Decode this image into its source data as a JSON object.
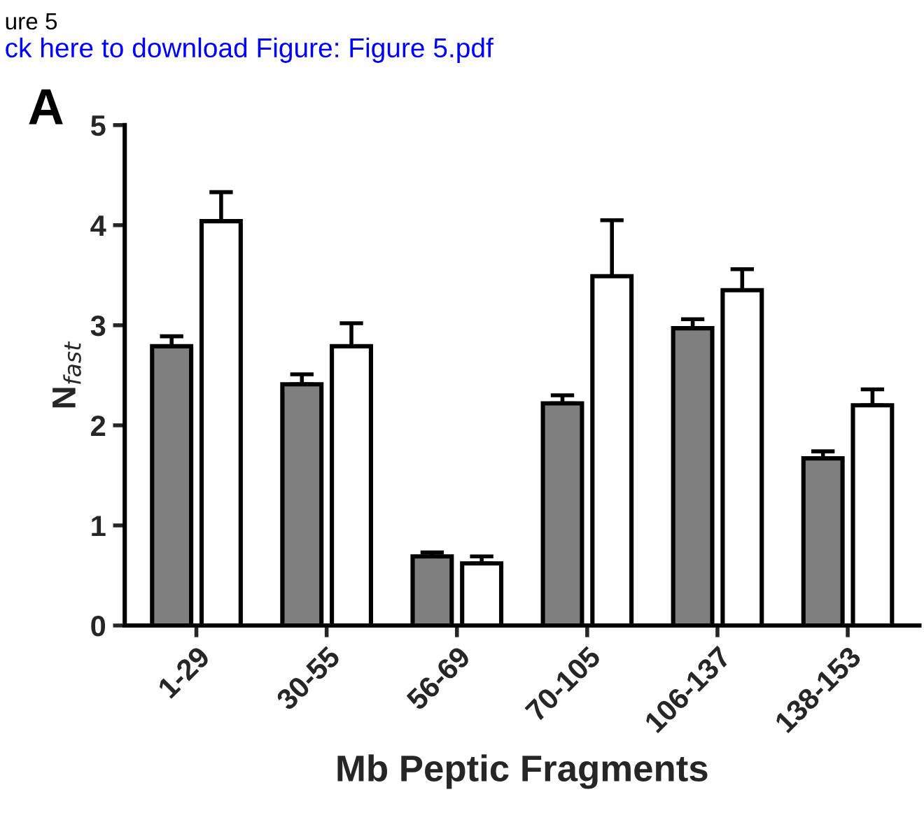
{
  "chart_data": {
    "type": "bar",
    "xlabel": "Mb Peptic Fragments",
    "ylabel": "N$_{fast}$",
    "categories": [
      "1-29",
      "30-55",
      "56-69",
      "70-105",
      "106-137",
      "138-153"
    ],
    "series": [
      {
        "color": "#7f7f7f",
        "values": [
          2.79,
          2.41,
          0.69,
          2.22,
          2.97,
          1.67
        ],
        "errors": [
          [
            2.79,
            2.89
          ],
          [
            2.41,
            2.51
          ],
          [
            0.69,
            0.73
          ],
          [
            2.22,
            2.3
          ],
          [
            2.97,
            3.06
          ],
          [
            1.67,
            1.74
          ]
        ]
      },
      {
        "color": "#ffffff",
        "values": [
          4.04,
          2.79,
          0.62,
          3.49,
          3.35,
          2.2
        ],
        "errors": [
          [
            4.04,
            4.33
          ],
          [
            2.79,
            3.02
          ],
          [
            0.62,
            0.69
          ],
          [
            3.49,
            4.05
          ],
          [
            3.35,
            3.56
          ],
          [
            2.2,
            2.36
          ]
        ]
      }
    ],
    "ylim": [
      0,
      5
    ],
    "yticks": [
      0,
      1,
      2,
      3,
      4,
      5
    ],
    "grid": false,
    "legend": false,
    "annotations": [
      "ure 5",
      "ck here to download Figure: Figure 5.pdf",
      "A"
    ]
  }
}
